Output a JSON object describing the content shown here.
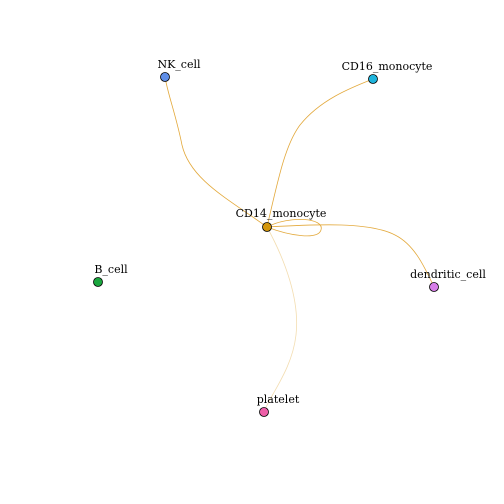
{
  "diagram": {
    "nodes": [
      {
        "id": "NK_cell",
        "label": "NK_cell",
        "color": "#5f8ee8"
      },
      {
        "id": "CD16_monocyte",
        "label": "CD16_monocyte",
        "color": "#1eb4dc"
      },
      {
        "id": "CD14_monocyte",
        "label": "CD14_monocyte",
        "color": "#d4960a"
      },
      {
        "id": "B_cell",
        "label": "B_cell",
        "color": "#1aa63e"
      },
      {
        "id": "dendritic_cell",
        "label": "dendritic_cell",
        "color": "#d77ee8"
      },
      {
        "id": "platelet",
        "label": "platelet",
        "color": "#ee5fa8"
      }
    ],
    "edges": [
      {
        "from": "CD14_monocyte",
        "to": "NK_cell",
        "color": "#e3a93c"
      },
      {
        "from": "CD14_monocyte",
        "to": "CD16_monocyte",
        "color": "#e3a93c"
      },
      {
        "from": "CD14_monocyte",
        "to": "CD14_monocyte",
        "color": "#e3a93c"
      },
      {
        "from": "CD14_monocyte",
        "to": "dendritic_cell",
        "color": "#e3a93c"
      },
      {
        "from": "CD14_monocyte",
        "to": "platelet",
        "color": "#f3ddb0"
      }
    ]
  }
}
